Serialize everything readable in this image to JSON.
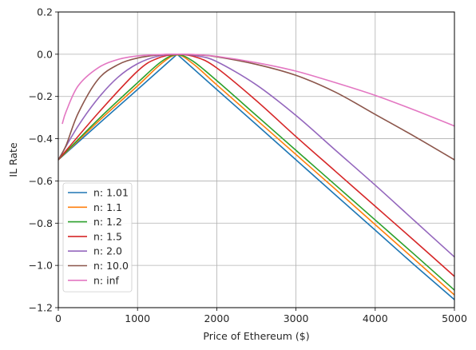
{
  "chart_data": {
    "type": "line",
    "title": "",
    "xlabel": "Price of Ethereum ($)",
    "ylabel": "IL Rate",
    "xlim": [
      0,
      5000
    ],
    "ylim": [
      -1.2,
      0.2
    ],
    "grid": true,
    "legend_position": "lower-left",
    "x_ticks": [
      "0",
      "1000",
      "2000",
      "3000",
      "4000",
      "5000"
    ],
    "y_ticks": [
      "0.2",
      "0.0",
      "−0.2",
      "−0.4",
      "−0.6",
      "−0.8",
      "−1.0",
      "−1.2"
    ],
    "series": [
      {
        "name": "n: 1.01",
        "color": "#1f77b4",
        "x": [
          0,
          500,
          1000,
          1500,
          2000,
          2500,
          3000,
          3500,
          4000,
          4500,
          5000
        ],
        "y": [
          -0.5,
          -0.333,
          -0.167,
          0.0,
          -0.167,
          -0.333,
          -0.5,
          -0.667,
          -0.833,
          -1.0,
          -1.162
        ]
      },
      {
        "name": "n: 1.1",
        "color": "#ff7f0e",
        "x": [
          0,
          500,
          1000,
          1300,
          1500,
          1700,
          2000,
          2500,
          3000,
          3500,
          4000,
          4500,
          5000
        ],
        "y": [
          -0.5,
          -0.32,
          -0.15,
          -0.045,
          -0.003,
          -0.045,
          -0.145,
          -0.31,
          -0.475,
          -0.64,
          -0.807,
          -0.973,
          -1.14
        ]
      },
      {
        "name": "n: 1.2",
        "color": "#2ca02c",
        "x": [
          0,
          500,
          1000,
          1300,
          1500,
          1700,
          2000,
          2500,
          3000,
          3500,
          4000,
          4500,
          5000
        ],
        "y": [
          -0.5,
          -0.31,
          -0.135,
          -0.035,
          -0.002,
          -0.033,
          -0.125,
          -0.29,
          -0.455,
          -0.62,
          -0.785,
          -0.95,
          -1.117
        ]
      },
      {
        "name": "n: 1.5",
        "color": "#d62728",
        "x": [
          0,
          500,
          1000,
          1250,
          1500,
          1750,
          2000,
          2500,
          3000,
          3500,
          4000,
          4500,
          5000
        ],
        "y": [
          -0.5,
          -0.28,
          -0.08,
          -0.02,
          -0.001,
          -0.015,
          -0.065,
          -0.22,
          -0.39,
          -0.555,
          -0.72,
          -0.885,
          -1.052
        ]
      },
      {
        "name": "n: 2.0",
        "color": "#9467bd",
        "x": [
          0,
          250,
          500,
          750,
          1000,
          1250,
          1500,
          1750,
          2000,
          2500,
          3000,
          3500,
          4000,
          4500,
          5000
        ],
        "y": [
          -0.5,
          -0.34,
          -0.21,
          -0.11,
          -0.045,
          -0.01,
          0.0,
          -0.008,
          -0.035,
          -0.145,
          -0.29,
          -0.455,
          -0.62,
          -0.79,
          -0.96
        ]
      },
      {
        "name": "n: 10.0",
        "color": "#8c564b",
        "x": [
          0,
          100,
          250,
          500,
          750,
          1000,
          1250,
          1500,
          1750,
          2000,
          2500,
          3000,
          3500,
          4000,
          4500,
          5000
        ],
        "y": [
          -0.5,
          -0.43,
          -0.28,
          -0.12,
          -0.05,
          -0.018,
          -0.004,
          0.0,
          -0.003,
          -0.012,
          -0.048,
          -0.1,
          -0.18,
          -0.285,
          -0.39,
          -0.5
        ]
      },
      {
        "name": "n: inf",
        "color": "#e377c2",
        "x": [
          50,
          100,
          250,
          500,
          750,
          1000,
          1250,
          1500,
          1750,
          2000,
          2500,
          3000,
          3500,
          4000,
          4500,
          5000
        ],
        "y": [
          -0.33,
          -0.27,
          -0.15,
          -0.065,
          -0.025,
          -0.008,
          -0.002,
          0.0,
          -0.002,
          -0.01,
          -0.04,
          -0.08,
          -0.135,
          -0.195,
          -0.265,
          -0.34
        ]
      }
    ]
  }
}
